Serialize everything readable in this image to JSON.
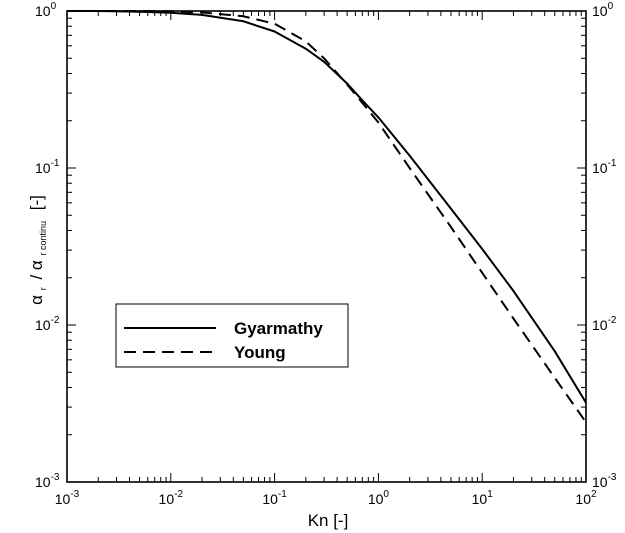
{
  "chart_data": {
    "type": "line",
    "xscale": "log",
    "yscale": "log",
    "xlim": [
      0.001,
      100
    ],
    "ylim": [
      0.001,
      1
    ],
    "xlabel": "Kn [-]",
    "ylabel": {
      "main": "α",
      "main_sub": "r",
      "separator": "/",
      "denominator": "α",
      "denominator_sub": "r continu",
      "unit": "[-]"
    },
    "xticks": [
      {
        "value": 0.001,
        "base": "10",
        "exp": "-3"
      },
      {
        "value": 0.01,
        "base": "10",
        "exp": "-2"
      },
      {
        "value": 0.1,
        "base": "10",
        "exp": "-1"
      },
      {
        "value": 1,
        "base": "10",
        "exp": "0"
      },
      {
        "value": 10,
        "base": "10",
        "exp": "1"
      },
      {
        "value": 100,
        "base": "10",
        "exp": "2"
      }
    ],
    "yticks": [
      {
        "value": 0.001,
        "base": "10",
        "exp": "-3"
      },
      {
        "value": 0.01,
        "base": "10",
        "exp": "-2"
      },
      {
        "value": 0.1,
        "base": "10",
        "exp": "-1"
      },
      {
        "value": 1,
        "base": "10",
        "exp": "0"
      }
    ],
    "mirror_y_ticks_right": true,
    "grid": false,
    "legend_position": "lower-left",
    "series": [
      {
        "name": "Gyarmathy",
        "dash": "solid",
        "x": [
          0.001,
          0.002,
          0.005,
          0.01,
          0.02,
          0.05,
          0.1,
          0.2,
          0.3,
          0.5,
          0.7,
          1,
          2,
          5,
          10,
          20,
          50,
          100
        ],
        "y": [
          1.0,
          1.0,
          0.99,
          0.975,
          0.945,
          0.86,
          0.74,
          0.575,
          0.475,
          0.345,
          0.27,
          0.21,
          0.12,
          0.055,
          0.0305,
          0.0165,
          0.0068,
          0.0032
        ]
      },
      {
        "name": "Young",
        "dash": "dashed",
        "x": [
          0.001,
          0.002,
          0.005,
          0.01,
          0.02,
          0.05,
          0.1,
          0.2,
          0.3,
          0.5,
          0.7,
          1,
          2,
          5,
          10,
          20,
          50,
          100
        ],
        "y": [
          1.0,
          1.0,
          1.0,
          0.995,
          0.98,
          0.925,
          0.83,
          0.64,
          0.5,
          0.34,
          0.26,
          0.195,
          0.1,
          0.042,
          0.0215,
          0.011,
          0.0046,
          0.0024
        ]
      }
    ]
  }
}
